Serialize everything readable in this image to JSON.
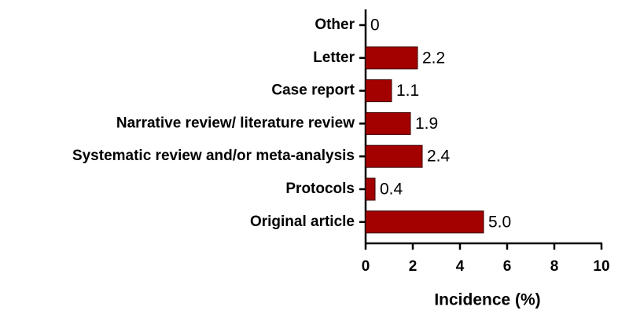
{
  "chart_data": {
    "type": "hbar",
    "x_label": "Incidence (%)",
    "categories": [
      "Other",
      "Letter",
      "Case report",
      "Narrative review/ literature review",
      "Systematic review and/or meta-analysis",
      "Protocols",
      "Original article"
    ],
    "values": [
      0,
      2.2,
      1.1,
      1.9,
      2.4,
      0.4,
      5.0
    ],
    "value_labels": [
      "0",
      "2.2",
      "1.1",
      "1.9",
      "2.4",
      "0.4",
      "5.0"
    ],
    "color": "#a30000",
    "xlim": [
      0,
      10
    ],
    "xticks": [
      0,
      2,
      4,
      6,
      8,
      10
    ],
    "grid": false
  }
}
